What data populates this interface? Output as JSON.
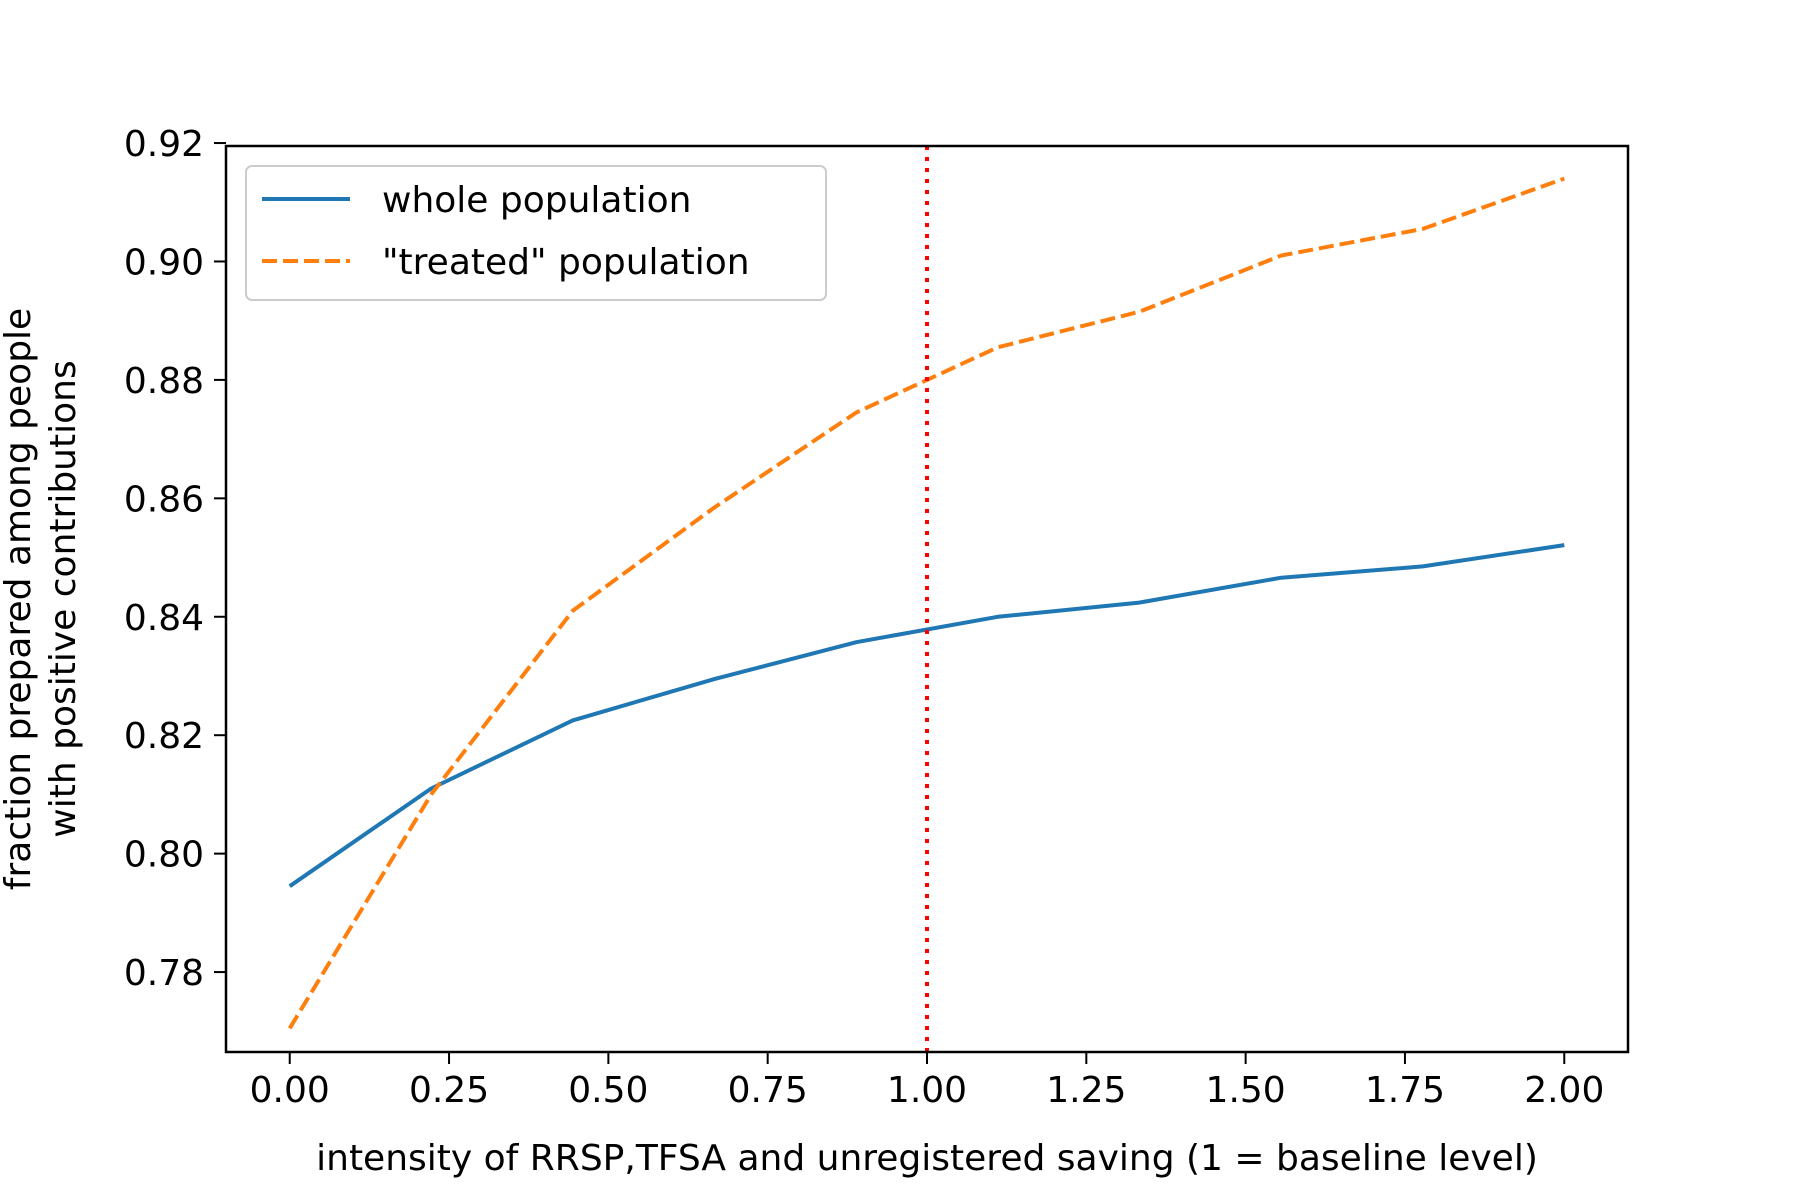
{
  "chart_data": {
    "type": "line",
    "title": "",
    "xlabel": "intensity of RRSP,TFSA and unregistered saving (1 = baseline level)",
    "ylabel_lines": [
      "fraction prepared among people",
      "with positive contributions"
    ],
    "xlim": [
      -0.1,
      2.1
    ],
    "ylim": [
      0.7665,
      0.9195
    ],
    "xticks": [
      "0.00",
      "0.25",
      "0.50",
      "0.75",
      "1.00",
      "1.25",
      "1.50",
      "1.75",
      "2.00"
    ],
    "xtick_values": [
      0,
      0.25,
      0.5,
      0.75,
      1.0,
      1.25,
      1.5,
      1.75,
      2.0
    ],
    "yticks": [
      "0.78",
      "0.80",
      "0.82",
      "0.84",
      "0.86",
      "0.88",
      "0.90",
      "0.92"
    ],
    "ytick_values": [
      0.78,
      0.8,
      0.82,
      0.84,
      0.86,
      0.88,
      0.9,
      0.92
    ],
    "grid": false,
    "legend_position": "top-left",
    "x": [
      0.0,
      0.222,
      0.444,
      0.667,
      0.889,
      1.111,
      1.333,
      1.556,
      1.778,
      2.0
    ],
    "series": [
      {
        "name": "whole population",
        "color": "#1f77b4",
        "style": "solid",
        "values": [
          0.7945,
          0.811,
          0.8225,
          0.8295,
          0.8357,
          0.84,
          0.8424,
          0.8466,
          0.8485,
          0.8521
        ]
      },
      {
        "name": "\"treated\" population",
        "color": "#ff7f0e",
        "style": "dashed",
        "values": [
          0.7705,
          0.81,
          0.841,
          0.8585,
          0.8745,
          0.8855,
          0.8915,
          0.901,
          0.9055,
          0.914
        ]
      }
    ],
    "vline": {
      "x": 1.0,
      "color": "#ff0000",
      "style": "dotted"
    }
  }
}
